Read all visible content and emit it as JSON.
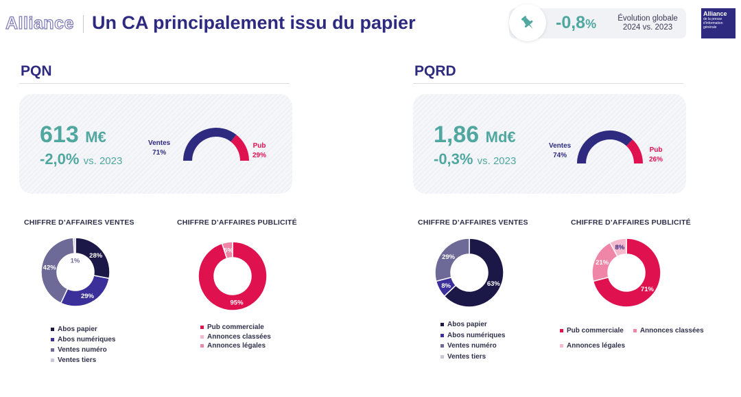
{
  "header": {
    "brand": "Alliance",
    "title": "Un CA principalement issu du papier",
    "kpi_value": "-0,8",
    "kpi_unit": "%",
    "kpi_label_line1": "Évolution globale",
    "kpi_label_line2": "2024 vs. 2023",
    "logo_line1": "Alliance",
    "logo_line2": "de la presse d'information générale",
    "pin_icon": "pin-icon"
  },
  "colors": {
    "navy": "#2d2a80",
    "teal": "#4fa7a0",
    "pub": "#e0114f",
    "pink_mid": "#ef86a8",
    "pink_light": "#f6b8cc",
    "dark_navy": "#1b1746",
    "violet": "#3b2f9a",
    "grey_violet": "#6e6a97",
    "light_grey": "#c7c5d8"
  },
  "pqn": {
    "section_title": "PQN",
    "revenue_value": "613",
    "revenue_unit": "M€",
    "evolution_value": "-2,0%",
    "evolution_suffix": "vs. 2023",
    "gauge": {
      "ventes_label": "Ventes",
      "ventes_pct": "71%",
      "pub_label": "Pub",
      "pub_pct": "29%",
      "ventes_share": 71,
      "pub_share": 29
    }
  },
  "pqrd": {
    "section_title": "PQRD",
    "revenue_value": "1,86",
    "revenue_unit": "Md€",
    "evolution_value": "-0,3%",
    "evolution_suffix": "vs. 2023",
    "gauge": {
      "ventes_label": "Ventes",
      "ventes_pct": "74%",
      "pub_label": "Pub",
      "pub_pct": "26%",
      "ventes_share": 74,
      "pub_share": 26
    }
  },
  "chart_titles": {
    "ventes": "CHIFFRE D’AFFAIRES VENTES",
    "pub": "CHIFFRE D’AFFAIRES PUBLICITÉ"
  },
  "chart_data": [
    {
      "type": "pie",
      "title": "CHIFFRE D’AFFAIRES VENTES",
      "group": "PQN",
      "categories": [
        "Abos papier",
        "Abos numériques",
        "Ventes numéro",
        "Ventes tiers"
      ],
      "values": [
        28,
        29,
        42,
        1
      ],
      "labels": [
        "28%",
        "29%",
        "42%",
        "1%"
      ],
      "colors": [
        "#1b1746",
        "#3b2f9a",
        "#6e6a97",
        "#c7c5d8"
      ]
    },
    {
      "type": "pie",
      "title": "CHIFFRE D’AFFAIRES PUBLICITÉ",
      "group": "PQN",
      "categories": [
        "Pub commerciale",
        "Annonces classées",
        "Annonces légales"
      ],
      "values": [
        95,
        0,
        5
      ],
      "labels": [
        "95%",
        "",
        "5%"
      ],
      "colors": [
        "#e0114f",
        "#f6b8cc",
        "#ef86a8"
      ]
    },
    {
      "type": "pie",
      "title": "CHIFFRE D’AFFAIRES VENTES",
      "group": "PQRD",
      "categories": [
        "Abos papier",
        "Abos numériques",
        "Ventes numéro",
        "Ventes tiers"
      ],
      "values": [
        63,
        8,
        29,
        0
      ],
      "labels": [
        "63%",
        "8%",
        "29%",
        ""
      ],
      "colors": [
        "#1b1746",
        "#3b2f9a",
        "#6e6a97",
        "#c7c5d8"
      ]
    },
    {
      "type": "pie",
      "title": "CHIFFRE D’AFFAIRES PUBLICITÉ",
      "group": "PQRD",
      "categories": [
        "Pub commerciale",
        "Annonces classées",
        "Annonces légales"
      ],
      "values": [
        71,
        21,
        8
      ],
      "labels": [
        "71%",
        "21%",
        "8%"
      ],
      "colors": [
        "#e0114f",
        "#ef86a8",
        "#f6b8cc"
      ]
    }
  ],
  "legends": {
    "ventes": [
      "Abos papier",
      "Abos numériques",
      "Ventes numéro",
      "Ventes tiers"
    ],
    "pub": [
      "Pub commerciale",
      "Annonces classées",
      "Annonces légales"
    ]
  }
}
